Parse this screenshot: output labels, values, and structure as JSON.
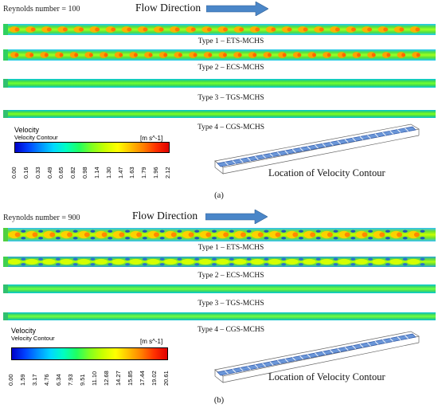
{
  "panels": [
    {
      "id": "a",
      "reynolds_label": "Reynolds number = 100",
      "flow_label": "Flow Direction",
      "types": [
        "Type 1 – ETS-MCHS",
        "Type 2 – ECS-MCHS",
        "Type 3 – TGS-MCHS",
        "Type 4 – CGS-MCHS"
      ],
      "legend": {
        "title": "Velocity",
        "subtitle": "Velocity Contour",
        "unit": "[m s^-1]",
        "ticks": [
          "0.00",
          "0.16",
          "0.33",
          "0.49",
          "0.65",
          "0.82",
          "0.98",
          "1.14",
          "1.30",
          "1.47",
          "1.63",
          "1.79",
          "1.96",
          "2.12"
        ]
      },
      "location_label": "Location of Velocity Contour",
      "caption": "(a)"
    },
    {
      "id": "b",
      "reynolds_label": "Reynolds number = 900",
      "flow_label": "Flow Direction",
      "types": [
        "Type 1 – ETS-MCHS",
        "Type 2 – ECS-MCHS",
        "Type 3 – TGS-MCHS",
        "Type 4 – CGS-MCHS"
      ],
      "legend": {
        "title": "Velocity",
        "subtitle": "Velocity Contour",
        "unit": "[m s^-1]",
        "ticks": [
          "0.00",
          "1.59",
          "3.17",
          "4.76",
          "6.34",
          "7.93",
          "9.51",
          "11.10",
          "12.68",
          "14.27",
          "15.85",
          "17.44",
          "19.02",
          "20.61"
        ]
      },
      "location_label": "Location of Velocity Contour",
      "caption": "(b)"
    }
  ],
  "colors": {
    "arrow": "#4a86c8",
    "low": "#0000ff",
    "high": "#ff0000",
    "channel_base": "#3fd45a"
  },
  "colormap": [
    "#0000c8",
    "#0040ff",
    "#0090ff",
    "#00d8ff",
    "#00ffc0",
    "#20ff60",
    "#80ff20",
    "#c8ff00",
    "#ffff00",
    "#ffc000",
    "#ff8000",
    "#ff3000",
    "#e00000"
  ]
}
